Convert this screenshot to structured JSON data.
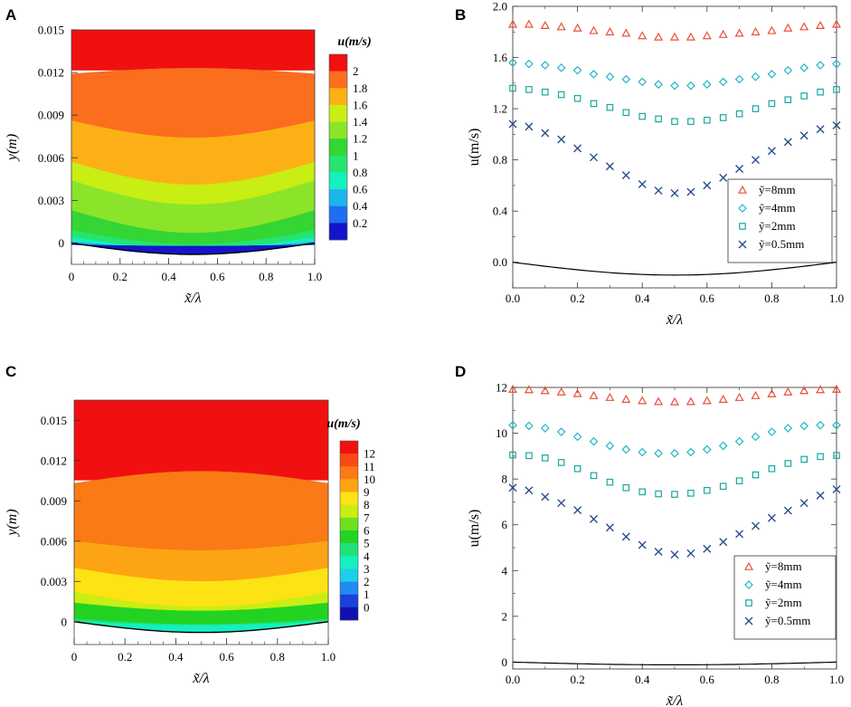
{
  "chart_data": [
    {
      "panel": "A",
      "type": "heatmap",
      "xlabel": "x̃/λ",
      "ylabel": "y(m)",
      "x_ticks": [
        "0",
        "0.2",
        "0.4",
        "0.6",
        "0.8",
        "1.0"
      ],
      "y_ticks": [
        "0",
        "0.003",
        "0.006",
        "0.009",
        "0.012",
        "0.015"
      ],
      "xlim": [
        0,
        1
      ],
      "ylim": [
        -0.0015,
        0.015
      ],
      "wall_depth_m": 0.0008,
      "colorbar": {
        "title": "u(m/s)",
        "labels": [
          "2",
          "1.8",
          "1.6",
          "1.4",
          "1.2",
          "1",
          "0.8",
          "0.6",
          "0.4",
          "0.2"
        ],
        "colors": [
          "#f01010",
          "#fa6e1e",
          "#fdb015",
          "#c8ee14",
          "#8be42a",
          "#33d633",
          "#25e470",
          "#15f0c0",
          "#1eb4ec",
          "#1e6ef0",
          "#1414cc"
        ]
      },
      "bands": [
        {
          "color": "#fa6e1e",
          "edge": 0.0119,
          "dip": 0.0004
        },
        {
          "color": "#fdb015",
          "edge": 0.0086,
          "dip": -0.0012
        },
        {
          "color": "#c8ee14",
          "edge": 0.0057,
          "dip": -0.0016
        },
        {
          "color": "#8be42a",
          "edge": 0.0044,
          "dip": -0.0017
        },
        {
          "color": "#33d633",
          "edge": 0.0023,
          "dip": -0.0016
        },
        {
          "color": "#25e470",
          "edge": 0.0009,
          "dip": -0.001
        },
        {
          "color": "#15f0c0",
          "edge": 0.0004,
          "dip": -0.0008
        },
        {
          "color": "#1eb4ec",
          "edge": 0.0001,
          "dip": -0.0005
        },
        {
          "color": "#1e6ef0",
          "edge": -3e-05,
          "dip": -0.0004
        },
        {
          "color": "#1414cc",
          "edge": -0.00012,
          "dip": -0.0001
        }
      ]
    },
    {
      "panel": "B",
      "type": "scatter",
      "xlabel": "x̃/λ",
      "ylabel": "u(m/s)",
      "xlim": [
        0,
        1
      ],
      "ylim": [
        -0.2,
        2.0
      ],
      "x_ticks": [
        "0.0",
        "0.2",
        "0.4",
        "0.6",
        "0.8",
        "1.0"
      ],
      "y_ticks": [
        "0.0",
        "0.4",
        "0.8",
        "1.2",
        "1.6",
        "2.0"
      ],
      "x": [
        0,
        0.05,
        0.1,
        0.15,
        0.2,
        0.25,
        0.3,
        0.35,
        0.4,
        0.45,
        0.5,
        0.55,
        0.6,
        0.65,
        0.7,
        0.75,
        0.8,
        0.85,
        0.9,
        0.95,
        1.0
      ],
      "series": [
        {
          "name": "ỹ=8mm",
          "marker": "triangle",
          "color": "#e8503a",
          "values": [
            1.86,
            1.86,
            1.85,
            1.84,
            1.83,
            1.81,
            1.8,
            1.79,
            1.77,
            1.76,
            1.76,
            1.76,
            1.77,
            1.78,
            1.79,
            1.8,
            1.81,
            1.83,
            1.84,
            1.85,
            1.86
          ]
        },
        {
          "name": "ỹ=4mm",
          "marker": "diamond",
          "color": "#1fb8c8",
          "values": [
            1.56,
            1.55,
            1.54,
            1.52,
            1.5,
            1.47,
            1.45,
            1.43,
            1.41,
            1.39,
            1.38,
            1.38,
            1.39,
            1.41,
            1.43,
            1.45,
            1.47,
            1.5,
            1.52,
            1.54,
            1.55
          ]
        },
        {
          "name": "ỹ=2mm",
          "marker": "square",
          "color": "#17a89c",
          "values": [
            1.36,
            1.35,
            1.33,
            1.31,
            1.28,
            1.24,
            1.21,
            1.17,
            1.14,
            1.12,
            1.1,
            1.1,
            1.11,
            1.13,
            1.16,
            1.2,
            1.24,
            1.27,
            1.3,
            1.33,
            1.35
          ]
        },
        {
          "name": "ỹ=0.5mm",
          "marker": "x",
          "color": "#2b4c8c",
          "values": [
            1.08,
            1.06,
            1.01,
            0.96,
            0.89,
            0.82,
            0.75,
            0.68,
            0.61,
            0.56,
            0.54,
            0.55,
            0.6,
            0.66,
            0.73,
            0.8,
            0.87,
            0.94,
            0.99,
            1.04,
            1.07
          ]
        }
      ],
      "wall_curve": {
        "name": "wall",
        "color": "#000000",
        "base": 0.0,
        "depth": 0.1
      },
      "legend_position": "right-middle"
    },
    {
      "panel": "C",
      "type": "heatmap",
      "xlabel": "x̃/λ",
      "ylabel": "y(m)",
      "x_ticks": [
        "0",
        "0.2",
        "0.4",
        "0.6",
        "0.8",
        "1.0"
      ],
      "y_ticks": [
        "0",
        "0.003",
        "0.006",
        "0.009",
        "0.012",
        "0.015"
      ],
      "xlim": [
        0,
        1
      ],
      "ylim": [
        -0.0017,
        0.0165
      ],
      "wall_depth_m": 0.0008,
      "colorbar": {
        "title": "u(m/s)",
        "labels": [
          "12",
          "11",
          "10",
          "9",
          "8",
          "7",
          "6",
          "5",
          "4",
          "3",
          "2",
          "1",
          "0"
        ],
        "colors": [
          "#f01010",
          "#f84a14",
          "#fa7a16",
          "#fda414",
          "#fde214",
          "#c8ee14",
          "#6ee020",
          "#22d322",
          "#22e07c",
          "#15f0c0",
          "#1ecdea",
          "#1e8cf0",
          "#1a40dd",
          "#1010b0"
        ]
      },
      "bands": [
        {
          "color": "#fa7a16",
          "edge": 0.0103,
          "dip": 0.0009
        },
        {
          "color": "#fda414",
          "edge": 0.006,
          "dip": -0.0007
        },
        {
          "color": "#fde214",
          "edge": 0.004,
          "dip": -0.001
        },
        {
          "color": "#c8ee14",
          "edge": 0.0022,
          "dip": -0.0011
        },
        {
          "color": "#22d322",
          "edge": 0.0014,
          "dip": -0.0006
        },
        {
          "color": "#22e07c",
          "edge": 0.0002,
          "dip": -0.0004
        },
        {
          "color": "#15f0c0",
          "edge": 3e-05,
          "dip": -0.0003
        }
      ]
    },
    {
      "panel": "D",
      "type": "scatter",
      "xlabel": "x̃/λ",
      "ylabel": "u(m/s)",
      "xlim": [
        0,
        1
      ],
      "ylim": [
        -0.3,
        12.0
      ],
      "x_ticks": [
        "0.0",
        "0.2",
        "0.4",
        "0.6",
        "0.8",
        "1.0"
      ],
      "y_ticks": [
        "0",
        "2",
        "4",
        "6",
        "8",
        "10",
        "12"
      ],
      "x": [
        0,
        0.05,
        0.1,
        0.15,
        0.2,
        0.25,
        0.3,
        0.35,
        0.4,
        0.45,
        0.5,
        0.55,
        0.6,
        0.65,
        0.7,
        0.75,
        0.8,
        0.85,
        0.9,
        0.95,
        1.0
      ],
      "series": [
        {
          "name": "ỹ=8mm",
          "marker": "triangle",
          "color": "#e8503a",
          "values": [
            11.92,
            11.9,
            11.86,
            11.8,
            11.73,
            11.64,
            11.56,
            11.48,
            11.42,
            11.38,
            11.37,
            11.38,
            11.42,
            11.48,
            11.56,
            11.64,
            11.72,
            11.8,
            11.86,
            11.9,
            11.92
          ]
        },
        {
          "name": "ỹ=4mm",
          "marker": "diamond",
          "color": "#1fb8c8",
          "values": [
            10.35,
            10.32,
            10.22,
            10.06,
            9.85,
            9.64,
            9.45,
            9.29,
            9.17,
            9.12,
            9.12,
            9.17,
            9.29,
            9.45,
            9.64,
            9.85,
            10.06,
            10.22,
            10.32,
            10.35,
            10.35
          ]
        },
        {
          "name": "ỹ=2mm",
          "marker": "square",
          "color": "#17a89c",
          "values": [
            9.05,
            9.02,
            8.92,
            8.72,
            8.45,
            8.15,
            7.86,
            7.62,
            7.44,
            7.35,
            7.33,
            7.38,
            7.5,
            7.68,
            7.92,
            8.18,
            8.45,
            8.68,
            8.86,
            8.98,
            9.03
          ]
        },
        {
          "name": "ỹ=0.5mm",
          "marker": "x",
          "color": "#2b4c8c",
          "values": [
            7.62,
            7.5,
            7.22,
            6.95,
            6.64,
            6.25,
            5.88,
            5.48,
            5.12,
            4.82,
            4.7,
            4.75,
            4.95,
            5.25,
            5.6,
            5.95,
            6.3,
            6.62,
            6.95,
            7.28,
            7.55
          ]
        }
      ],
      "wall_curve": {
        "name": "wall",
        "color": "#000000",
        "base": 0.0,
        "depth": 0.12
      },
      "legend_position": "right-lower"
    }
  ]
}
